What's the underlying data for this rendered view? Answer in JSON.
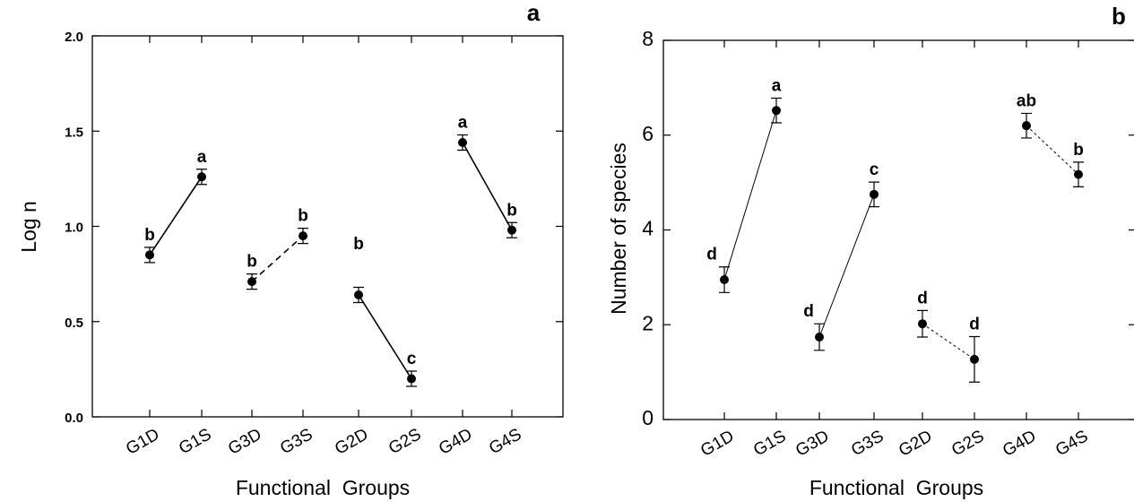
{
  "chart_data": [
    {
      "type": "line",
      "panel_label": "a",
      "ylabel": "Log n",
      "xlabel": "Functional  Groups",
      "categories": [
        "G1D",
        "G1S",
        "G3D",
        "G3S",
        "G2D",
        "G2S",
        "G4D",
        "G4S"
      ],
      "ylim": [
        0,
        2.0
      ],
      "y_ticks": [
        0.0,
        0.5,
        1.0,
        1.5,
        2.0
      ],
      "y_tick_labels": [
        "0.0",
        "0.5",
        "1.0",
        "1.5",
        "2.0"
      ],
      "points": [
        {
          "category": "G1D",
          "y": 0.85,
          "err": 0.04,
          "label": "b"
        },
        {
          "category": "G1S",
          "y": 1.26,
          "err": 0.04,
          "label": "a"
        },
        {
          "category": "G3D",
          "y": 0.71,
          "err": 0.04,
          "label": "b"
        },
        {
          "category": "G3S",
          "y": 0.95,
          "err": 0.04,
          "label": "b"
        },
        {
          "category": "G2D",
          "y": 0.64,
          "err": 0.04,
          "label": "b"
        },
        {
          "category": "G2S",
          "y": 0.2,
          "err": 0.04,
          "label": "c"
        },
        {
          "category": "G4D",
          "y": 1.44,
          "err": 0.04,
          "label": "a"
        },
        {
          "category": "G4S",
          "y": 0.98,
          "err": 0.04,
          "label": "b"
        }
      ],
      "connections": [
        {
          "from": 0,
          "to": 1,
          "style": "solid"
        },
        {
          "from": 2,
          "to": 3,
          "style": "dashed"
        },
        {
          "from": 4,
          "to": 5,
          "style": "solid"
        },
        {
          "from": 6,
          "to": 7,
          "style": "solid"
        }
      ],
      "grid": false
    },
    {
      "type": "line",
      "panel_label": "b",
      "ylabel": "Number of species",
      "xlabel": "Functional  Groups",
      "categories": [
        "G1D",
        "G1S",
        "G3D",
        "G3S",
        "G2D",
        "G2S",
        "G4D",
        "G4S"
      ],
      "ylim": [
        0,
        8
      ],
      "y_ticks": [
        0,
        2,
        4,
        6,
        8
      ],
      "y_tick_labels": [
        "0",
        "2",
        "4",
        "6",
        "8"
      ],
      "points": [
        {
          "category": "G1D",
          "y": 2.95,
          "err": 0.27,
          "label": "d"
        },
        {
          "category": "G1S",
          "y": 6.52,
          "err": 0.26,
          "label": "a"
        },
        {
          "category": "G3D",
          "y": 1.74,
          "err": 0.28,
          "label": "d"
        },
        {
          "category": "G3S",
          "y": 4.75,
          "err": 0.26,
          "label": "c"
        },
        {
          "category": "G2D",
          "y": 2.02,
          "err": 0.28,
          "label": "d"
        },
        {
          "category": "G2S",
          "y": 1.27,
          "err": 0.48,
          "label": "d"
        },
        {
          "category": "G4D",
          "y": 6.2,
          "err": 0.26,
          "label": "ab"
        },
        {
          "category": "G4S",
          "y": 5.17,
          "err": 0.26,
          "label": "b"
        }
      ],
      "connections": [
        {
          "from": 0,
          "to": 1,
          "style": "solid"
        },
        {
          "from": 2,
          "to": 3,
          "style": "solid"
        },
        {
          "from": 4,
          "to": 5,
          "style": "dotted"
        },
        {
          "from": 6,
          "to": 7,
          "style": "dotted"
        }
      ],
      "grid": false
    }
  ]
}
